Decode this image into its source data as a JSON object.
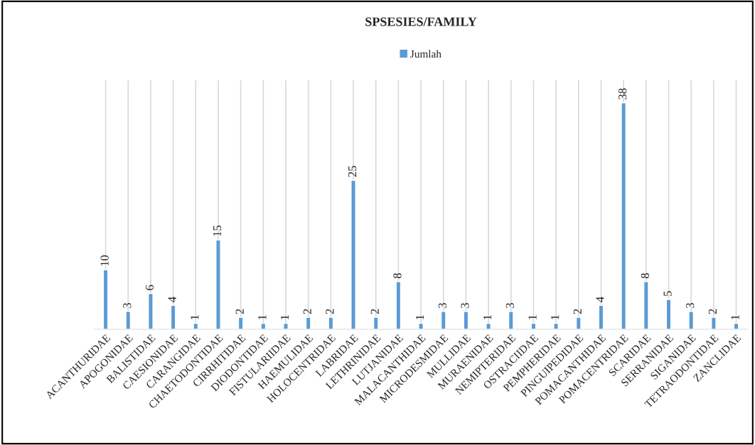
{
  "chart_data": {
    "type": "bar",
    "title": "SPSESIES/FAMILY",
    "categories": [
      "ACANTHURIDAE",
      "APOGONIDAE",
      "BALISTIDAE",
      "CAESIONIDAE",
      "CARANGIDAE",
      "CHAETODONTIDAE",
      "CIRRHITIDAE",
      "DIODONTIDAE",
      "FISTULARIIDAE",
      "HAEMULIDAE",
      "HOLOCENTRIDAE",
      "LABRIDAE",
      "LETHRINIDAE",
      "LUTJANIDAE",
      "MALACANTHIDAE",
      "MICRODESMIDAE",
      "MULLIDAE",
      "MURAENIDAE",
      "NEMIPTERIDAE",
      "OSTRACIIDAE",
      "PEMPHERIDAE",
      "PINGUIPEDIDAE",
      "POMACANTHIDAE",
      "POMACENTRIDAE",
      "SCARIDAE",
      "SERRANIDAE",
      "SIGANIDAE",
      "TETRAODONTIDAE",
      "ZANCLIDAE"
    ],
    "series": [
      {
        "name": "Jumlah",
        "color": "#5b9bd5",
        "values": [
          10,
          3,
          6,
          4,
          1,
          15,
          2,
          1,
          1,
          2,
          2,
          25,
          2,
          8,
          1,
          3,
          3,
          1,
          3,
          1,
          1,
          2,
          4,
          38,
          8,
          5,
          3,
          2,
          1
        ]
      }
    ],
    "data_labels": true,
    "grid": "x",
    "legend": "top",
    "tick_labels": "x"
  }
}
